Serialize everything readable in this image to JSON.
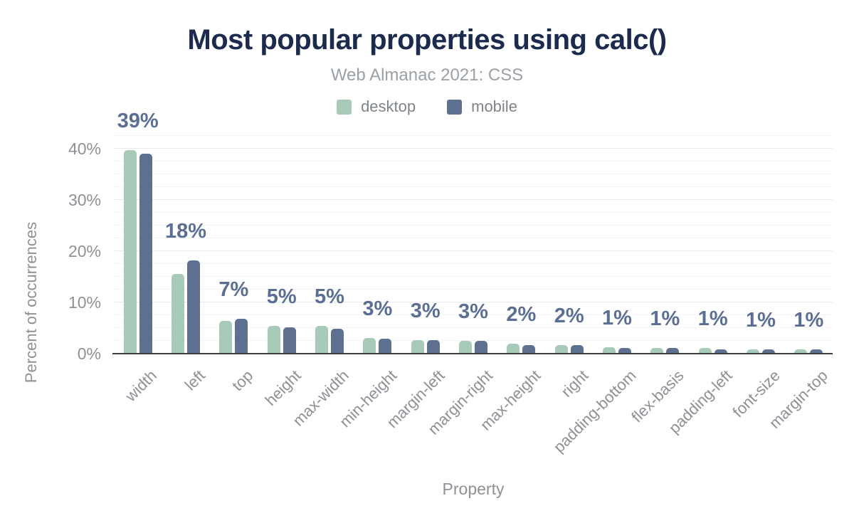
{
  "chart": {
    "title": "Most popular properties using calc()",
    "subtitle": "Web Almanac 2021: CSS",
    "xlabel": "Property",
    "ylabel": "Percent of occurrences"
  },
  "chart_data": {
    "type": "bar",
    "title": "Most popular properties using calc()",
    "subtitle": "Web Almanac 2021: CSS",
    "xlabel": "Property",
    "ylabel": "Percent of occurrences",
    "categories": [
      "width",
      "left",
      "top",
      "height",
      "max-width",
      "min-height",
      "margin-left",
      "margin-right",
      "max-height",
      "right",
      "padding-bottom",
      "flex-basis",
      "padding-left",
      "font-size",
      "margin-top"
    ],
    "series": [
      {
        "name": "desktop",
        "color": "#a8cab9",
        "values": [
          39.7,
          15.5,
          6.4,
          5.4,
          5.4,
          3.0,
          2.7,
          2.5,
          1.9,
          1.7,
          1.3,
          1.1,
          1.05,
          0.85,
          0.8
        ]
      },
      {
        "name": "mobile",
        "color": "#5e7090",
        "values": [
          39.0,
          18.2,
          6.8,
          5.1,
          4.9,
          2.9,
          2.7,
          2.5,
          1.7,
          1.6,
          1.1,
          1.1,
          0.85,
          0.85,
          0.8
        ]
      }
    ],
    "bar_labels": [
      "39%",
      "18%",
      "7%",
      "5%",
      "5%",
      "3%",
      "3%",
      "3%",
      "2%",
      "2%",
      "1%",
      "1%",
      "1%",
      "1%",
      "1%"
    ],
    "yticks": [
      {
        "label": "0%",
        "value": 0
      },
      {
        "label": "10%",
        "value": 10
      },
      {
        "label": "20%",
        "value": 20
      },
      {
        "label": "30%",
        "value": 30
      },
      {
        "label": "40%",
        "value": 40
      }
    ],
    "ylim": [
      0,
      43
    ],
    "grid": {
      "minor_step": 2.5,
      "major_step": 10
    },
    "legend_position": "top-center",
    "colors": {
      "desktop": "#a8cab9",
      "mobile": "#5e7090",
      "title": "#1c2b4d",
      "subtitle": "#9aa0a6",
      "data_label": "#5b6e94",
      "axis_text": "#8d9196",
      "axis_line": "#3a3d40",
      "grid_major": "#e8eaed",
      "grid_minor": "#f3f4f6",
      "background": "#ffffff"
    }
  }
}
